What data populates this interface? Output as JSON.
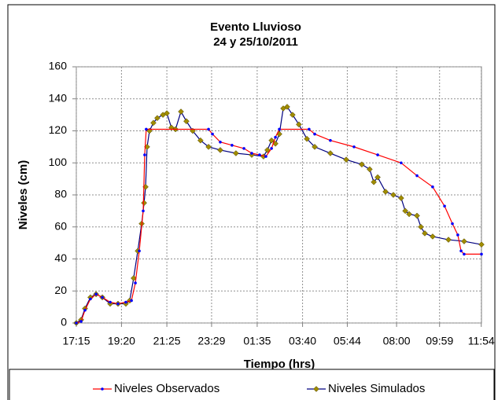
{
  "chart_data": {
    "type": "line",
    "title": "Evento Lluvioso",
    "subtitle": "24 y 25/10/2011",
    "x_label": "Tiempo (hrs)",
    "y_label": "Niveles (cm)",
    "xlim": [
      17.25,
      35.91
    ],
    "xticks": [
      {
        "value": 17.25,
        "label": "17:15"
      },
      {
        "value": 19.33,
        "label": "19:20"
      },
      {
        "value": 21.42,
        "label": "21:25"
      },
      {
        "value": 23.48,
        "label": "23:29"
      },
      {
        "value": 25.58,
        "label": "01:35"
      },
      {
        "value": 27.67,
        "label": "03:40"
      },
      {
        "value": 29.73,
        "label": "05:44"
      },
      {
        "value": 32.0,
        "label": "08:00"
      },
      {
        "value": 33.98,
        "label": "09:59"
      },
      {
        "value": 35.9,
        "label": "11:54"
      }
    ],
    "ylim": [
      0,
      160
    ],
    "yticks": [
      0,
      20,
      40,
      60,
      80,
      100,
      120,
      140,
      160
    ],
    "grid": true,
    "legend": "bottom",
    "series": [
      {
        "name": "Niveles Observados",
        "color": "#ff0000",
        "marker_color": "#0000ff",
        "marker": "circle",
        "x": [
          17.25,
          17.47,
          17.65,
          17.9,
          18.16,
          18.45,
          18.81,
          19.17,
          19.53,
          19.79,
          19.97,
          20.15,
          20.33,
          20.4,
          20.47,
          23.34,
          23.52,
          23.88,
          24.42,
          24.97,
          25.33,
          25.69,
          25.98,
          26.24,
          26.42,
          26.6,
          27.97,
          28.23,
          28.95,
          30.04,
          31.13,
          32.21,
          32.94,
          33.66,
          34.21,
          34.57,
          34.82,
          34.97,
          35.11,
          35.91
        ],
        "values": [
          0,
          1,
          8,
          15,
          18,
          16,
          13,
          12,
          13,
          14,
          25,
          45,
          70,
          105,
          121,
          121,
          118,
          113,
          111,
          109,
          106,
          105,
          104,
          109,
          116,
          121,
          121,
          118,
          114,
          110,
          105,
          100,
          92,
          85,
          73,
          62,
          55,
          45,
          43,
          43
        ]
      },
      {
        "name": "Niveles Simulados",
        "color": "#000080",
        "marker_color": "#a08c00",
        "marker": "diamond",
        "x": [
          17.25,
          17.47,
          17.65,
          17.9,
          18.16,
          18.45,
          18.81,
          19.17,
          19.53,
          19.71,
          19.89,
          20.08,
          20.26,
          20.37,
          20.44,
          20.51,
          20.62,
          20.8,
          20.98,
          21.24,
          21.42,
          21.63,
          21.82,
          22.07,
          22.32,
          22.61,
          22.97,
          23.34,
          23.88,
          24.6,
          25.33,
          25.87,
          26.05,
          26.24,
          26.42,
          26.6,
          26.78,
          26.96,
          27.21,
          27.5,
          27.87,
          28.23,
          28.95,
          29.68,
          30.4,
          30.76,
          30.95,
          31.13,
          31.49,
          31.85,
          32.21,
          32.4,
          32.58,
          32.94,
          33.12,
          33.3,
          33.66,
          34.39,
          35.11,
          35.91
        ],
        "values": [
          0,
          2,
          9,
          16,
          18,
          16,
          12,
          12,
          12,
          14,
          28,
          45,
          62,
          75,
          85,
          110,
          120,
          125,
          128,
          130,
          131,
          122,
          121,
          132,
          126,
          120,
          114,
          110,
          108,
          106,
          105,
          104,
          108,
          114,
          112,
          118,
          134,
          135,
          130,
          124,
          115,
          110,
          106,
          102,
          99,
          96,
          88,
          91,
          82,
          80,
          78,
          70,
          68,
          67,
          60,
          56,
          54,
          52,
          51,
          49
        ]
      }
    ]
  }
}
